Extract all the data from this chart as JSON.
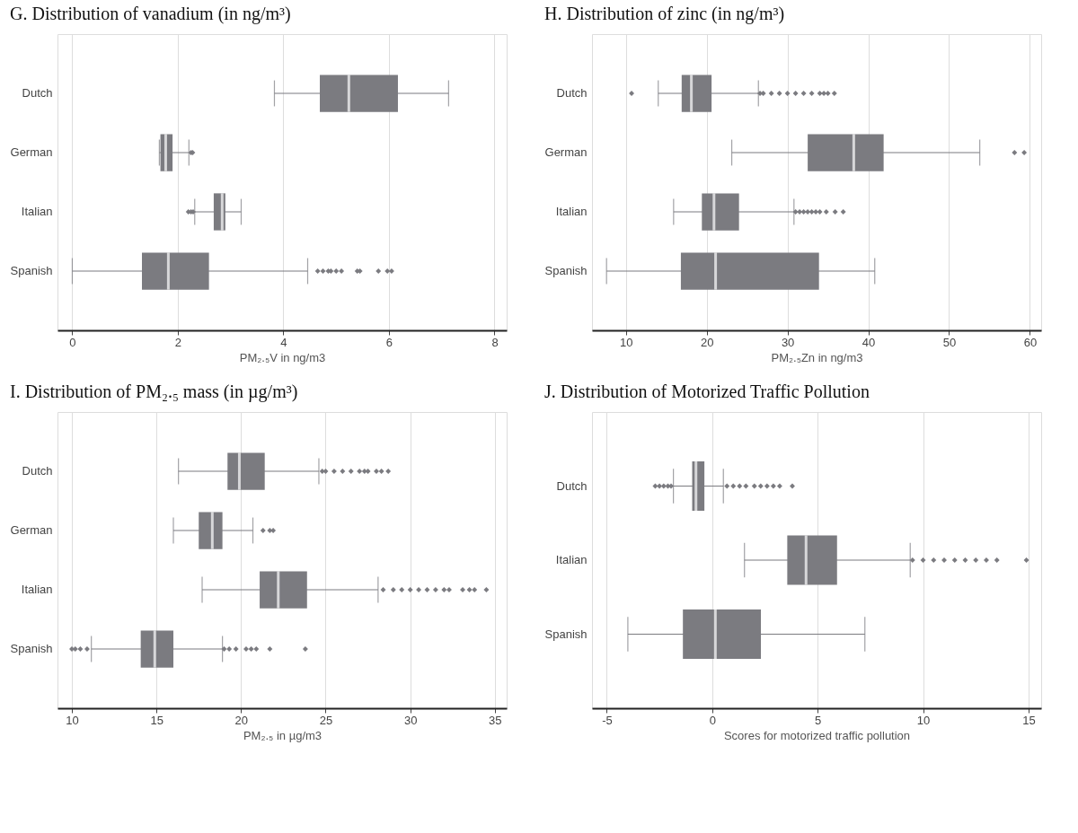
{
  "chart_data": [
    {
      "type": "box",
      "title": "G.    Distribution of vanadium (in ng/m³)",
      "xlabel": "PM₂.₅V in ng/m3",
      "orientation": "horizontal",
      "categories": [
        "Dutch",
        "German",
        "Italian",
        "Spanish"
      ],
      "xlim": [
        -0.28,
        8.23
      ],
      "xticks": [
        0,
        2,
        4,
        6,
        8
      ],
      "grid": "x",
      "marker": "diamond",
      "series": [
        {
          "color": "#7b7b80",
          "boxes": [
            {
              "low": 3.83,
              "q1": 4.69,
              "median": 5.24,
              "q3": 6.17,
              "high": 7.13
            },
            {
              "low": 1.65,
              "q1": 1.67,
              "median": 1.77,
              "q3": 1.9,
              "high": 2.21,
              "outliers": [
                2.25,
                2.28
              ]
            },
            {
              "low": 2.32,
              "q1": 2.68,
              "median": 2.84,
              "q3": 2.9,
              "high": 3.2,
              "outliers": [
                2.2,
                2.25,
                2.29
              ]
            },
            {
              "low": 0.0,
              "q1": 1.32,
              "median": 1.82,
              "q3": 2.59,
              "high": 4.46,
              "outliers": [
                4.65,
                4.75,
                4.85,
                4.9,
                5.0,
                5.1,
                5.4,
                5.45,
                5.8,
                5.97,
                6.05
              ]
            }
          ]
        }
      ]
    },
    {
      "type": "box",
      "title": "H.    Distribution of zinc (in ng/m³)",
      "xlabel": "PM₂.₅Zn in ng/m3",
      "orientation": "horizontal",
      "categories": [
        "Dutch",
        "German",
        "Italian",
        "Spanish"
      ],
      "xlim": [
        5.8,
        61.4
      ],
      "xticks": [
        10,
        20,
        30,
        40,
        50,
        60
      ],
      "grid": "x",
      "marker": "diamond",
      "series": [
        {
          "color": "#7b7b80",
          "boxes": [
            {
              "low": 14.0,
              "q1": 16.9,
              "median": 18.1,
              "q3": 20.6,
              "high": 26.4,
              "outliers": [
                10.7,
                26.6,
                27,
                28,
                29,
                30,
                31,
                32,
                33,
                34,
                34.5,
                35,
                35.8
              ]
            },
            {
              "low": 23.1,
              "q1": 32.5,
              "median": 38.2,
              "q3": 41.9,
              "high": 53.8,
              "outliers": [
                58.1,
                59.3
              ]
            },
            {
              "low": 15.9,
              "q1": 19.4,
              "median": 20.9,
              "q3": 24.0,
              "high": 30.8,
              "outliers": [
                31,
                31.5,
                32,
                32.5,
                33,
                33.5,
                34,
                34.8,
                35.9,
                36.9
              ]
            },
            {
              "low": 7.6,
              "q1": 16.8,
              "median": 21.1,
              "q3": 33.9,
              "high": 40.8
            }
          ]
        }
      ]
    },
    {
      "type": "box",
      "title": "I.    Distribution of PM₂.₅ mass (in µg/m³)",
      "xlabel": "PM₂.₅ in µg/m3",
      "orientation": "horizontal",
      "categories": [
        "Dutch",
        "German",
        "Italian",
        "Spanish"
      ],
      "xlim": [
        9.15,
        35.7
      ],
      "xticks": [
        10,
        15,
        20,
        25,
        30,
        35
      ],
      "grid": "x",
      "marker": "diamond",
      "series": [
        {
          "color": "#7b7b80",
          "boxes": [
            {
              "low": 16.3,
              "q1": 19.2,
              "median": 19.9,
              "q3": 21.4,
              "high": 24.6,
              "outliers": [
                24.8,
                25,
                25.5,
                26,
                26.5,
                27,
                27.3,
                27.5,
                28,
                28.3,
                28.7
              ]
            },
            {
              "low": 16.0,
              "q1": 17.5,
              "median": 18.3,
              "q3": 18.9,
              "high": 20.7,
              "outliers": [
                21.3,
                21.7,
                21.9
              ]
            },
            {
              "low": 17.7,
              "q1": 21.1,
              "median": 22.2,
              "q3": 23.9,
              "high": 28.1,
              "outliers": [
                28.4,
                29,
                29.5,
                30,
                30.5,
                31,
                31.5,
                32,
                32.3,
                33.1,
                33.5,
                33.8,
                34.5
              ]
            },
            {
              "low": 11.15,
              "q1": 14.07,
              "median": 14.9,
              "q3": 16.0,
              "high": 18.9,
              "outliers": [
                10.0,
                10.2,
                10.5,
                10.9,
                19.0,
                19.3,
                19.7,
                20.3,
                20.6,
                20.9,
                21.7,
                23.8
              ]
            }
          ]
        }
      ]
    },
    {
      "type": "box",
      "title": "J.    Distribution of Motorized Traffic Pollution",
      "xlabel": "Scores for motorized traffic pollution",
      "orientation": "horizontal",
      "categories": [
        "Dutch",
        "Italian",
        "Spanish"
      ],
      "xlim": [
        -5.7,
        15.6
      ],
      "xticks": [
        -5,
        0,
        5,
        10,
        15
      ],
      "grid": "x",
      "marker": "diamond",
      "series": [
        {
          "color": "#7b7b80",
          "boxes": [
            {
              "low": -1.84,
              "q1": -0.95,
              "median": -0.77,
              "q3": -0.37,
              "high": 0.53,
              "outliers": [
                -2.7,
                -2.5,
                -2.3,
                -2.1,
                -1.95,
                0.7,
                1.0,
                1.3,
                1.6,
                2.0,
                2.3,
                2.6,
                2.9,
                3.2,
                3.8
              ]
            },
            {
              "low": 1.53,
              "q1": 3.56,
              "median": 4.45,
              "q3": 5.92,
              "high": 9.39,
              "outliers": [
                9.5,
                10,
                10.5,
                11,
                11.5,
                12,
                12.5,
                13,
                13.5,
                14.9
              ]
            },
            {
              "low": -4.0,
              "q1": -1.39,
              "median": 0.15,
              "q3": 2.31,
              "high": 7.24
            }
          ]
        }
      ]
    }
  ]
}
